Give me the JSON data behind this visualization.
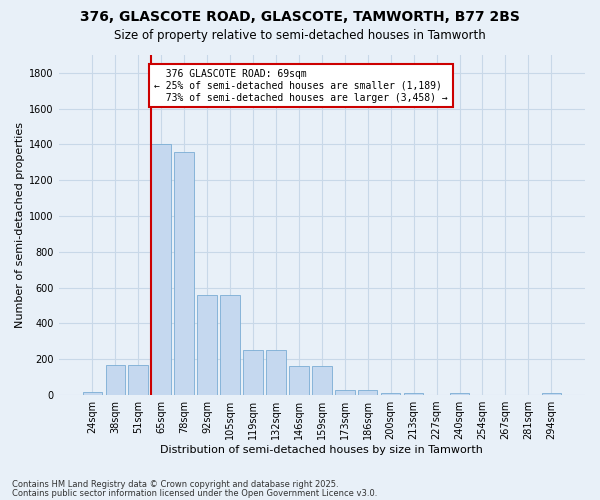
{
  "title": "376, GLASCOTE ROAD, GLASCOTE, TAMWORTH, B77 2BS",
  "subtitle": "Size of property relative to semi-detached houses in Tamworth",
  "xlabel": "Distribution of semi-detached houses by size in Tamworth",
  "ylabel": "Number of semi-detached properties",
  "categories": [
    "24sqm",
    "38sqm",
    "51sqm",
    "65sqm",
    "78sqm",
    "92sqm",
    "105sqm",
    "119sqm",
    "132sqm",
    "146sqm",
    "159sqm",
    "173sqm",
    "186sqm",
    "200sqm",
    "213sqm",
    "227sqm",
    "240sqm",
    "254sqm",
    "267sqm",
    "281sqm",
    "294sqm"
  ],
  "values": [
    20,
    170,
    170,
    1400,
    1360,
    560,
    560,
    250,
    250,
    160,
    160,
    30,
    30,
    10,
    10,
    0,
    10,
    0,
    0,
    0,
    10
  ],
  "bar_color": "#c5d8ef",
  "bar_edge_color": "#7aadd4",
  "redline_index": 3,
  "redline_label": "376 GLASCOTE ROAD: 69sqm",
  "smaller_pct": "25%",
  "smaller_count": "1,189",
  "larger_pct": "73%",
  "larger_count": "3,458",
  "annotation_box_color": "#ffffff",
  "annotation_box_edge": "#cc0000",
  "redline_color": "#cc0000",
  "ylim": [
    0,
    1900
  ],
  "yticks": [
    0,
    200,
    400,
    600,
    800,
    1000,
    1200,
    1400,
    1600,
    1800
  ],
  "bg_color": "#e8f0f8",
  "grid_color": "#c8d8e8",
  "footer1": "Contains HM Land Registry data © Crown copyright and database right 2025.",
  "footer2": "Contains public sector information licensed under the Open Government Licence v3.0.",
  "title_fontsize": 10,
  "subtitle_fontsize": 8.5,
  "axis_label_fontsize": 8,
  "tick_fontsize": 7,
  "annotation_fontsize": 7,
  "footer_fontsize": 6
}
